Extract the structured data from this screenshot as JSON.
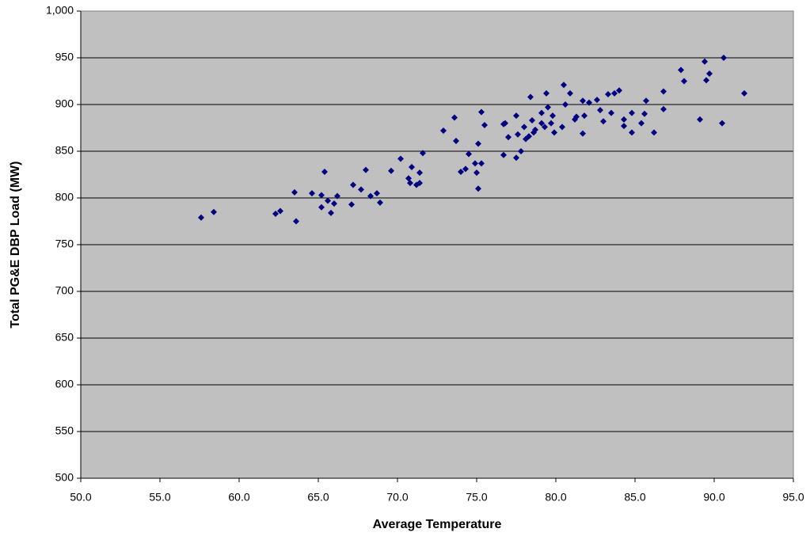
{
  "chart_data": {
    "type": "scatter",
    "xlabel": "Average Temperature",
    "ylabel": "Total PG&E DBP Load (MW)",
    "color": "#000080",
    "plot_background": "#c0c0c0",
    "grid": true,
    "xlim": [
      50,
      95
    ],
    "ylim": [
      500,
      1000
    ],
    "xticks": [
      {
        "value": 50,
        "label": "50.0"
      },
      {
        "value": 55,
        "label": "55.0"
      },
      {
        "value": 60,
        "label": "60.0"
      },
      {
        "value": 65,
        "label": "65.0"
      },
      {
        "value": 70,
        "label": "70.0"
      },
      {
        "value": 75,
        "label": "75.0"
      },
      {
        "value": 80,
        "label": "80.0"
      },
      {
        "value": 85,
        "label": "85.0"
      },
      {
        "value": 90,
        "label": "90.0"
      },
      {
        "value": 95,
        "label": "95.0"
      }
    ],
    "yticks": [
      500,
      550,
      600,
      650,
      700,
      750,
      800,
      850,
      900,
      950,
      {
        "value": 1000,
        "label": "1,000"
      }
    ],
    "x": [
      57.6,
      58.4,
      62.3,
      62.6,
      63.5,
      63.6,
      64.6,
      65.2,
      65.2,
      65.4,
      65.6,
      65.8,
      66.0,
      66.2,
      67.1,
      67.2,
      67.7,
      68.0,
      68.3,
      68.7,
      68.9,
      69.6,
      70.2,
      70.7,
      70.8,
      70.9,
      71.2,
      71.4,
      71.4,
      71.6,
      72.9,
      73.6,
      73.7,
      74.0,
      74.3,
      74.5,
      74.9,
      75.0,
      75.1,
      75.1,
      75.3,
      75.3,
      75.5,
      76.7,
      76.7,
      76.8,
      77.0,
      77.5,
      77.5,
      77.6,
      77.8,
      78.0,
      78.1,
      78.3,
      78.4,
      78.5,
      78.6,
      78.7,
      79.1,
      79.1,
      79.3,
      79.4,
      79.5,
      79.7,
      79.8,
      79.9,
      80.4,
      80.5,
      80.6,
      80.9,
      81.2,
      81.3,
      81.7,
      81.7,
      81.8,
      82.1,
      82.6,
      82.8,
      83.0,
      83.3,
      83.5,
      83.7,
      84.0,
      84.3,
      84.3,
      84.8,
      84.8,
      85.4,
      85.6,
      85.7,
      86.2,
      86.8,
      86.8,
      87.9,
      88.1,
      89.1,
      89.4,
      89.5,
      89.7,
      90.5,
      90.6,
      91.9
    ],
    "values": [
      779,
      785,
      783,
      786,
      806,
      775,
      805,
      790,
      803,
      828,
      797,
      784,
      794,
      802,
      793,
      814,
      809,
      830,
      802,
      805,
      795,
      829,
      842,
      821,
      816,
      833,
      814,
      816,
      827,
      848,
      872,
      886,
      861,
      828,
      831,
      847,
      837,
      827,
      810,
      858,
      837,
      892,
      878,
      846,
      879,
      880,
      865,
      888,
      843,
      868,
      850,
      876,
      863,
      866,
      908,
      883,
      870,
      873,
      891,
      880,
      876,
      912,
      897,
      880,
      888,
      870,
      876,
      921,
      900,
      912,
      884,
      887,
      904,
      869,
      888,
      902,
      905,
      894,
      882,
      911,
      891,
      912,
      915,
      877,
      884,
      891,
      870,
      880,
      890,
      904,
      870,
      895,
      914,
      937,
      925,
      884,
      946,
      926,
      933,
      880,
      950,
      912
    ]
  }
}
